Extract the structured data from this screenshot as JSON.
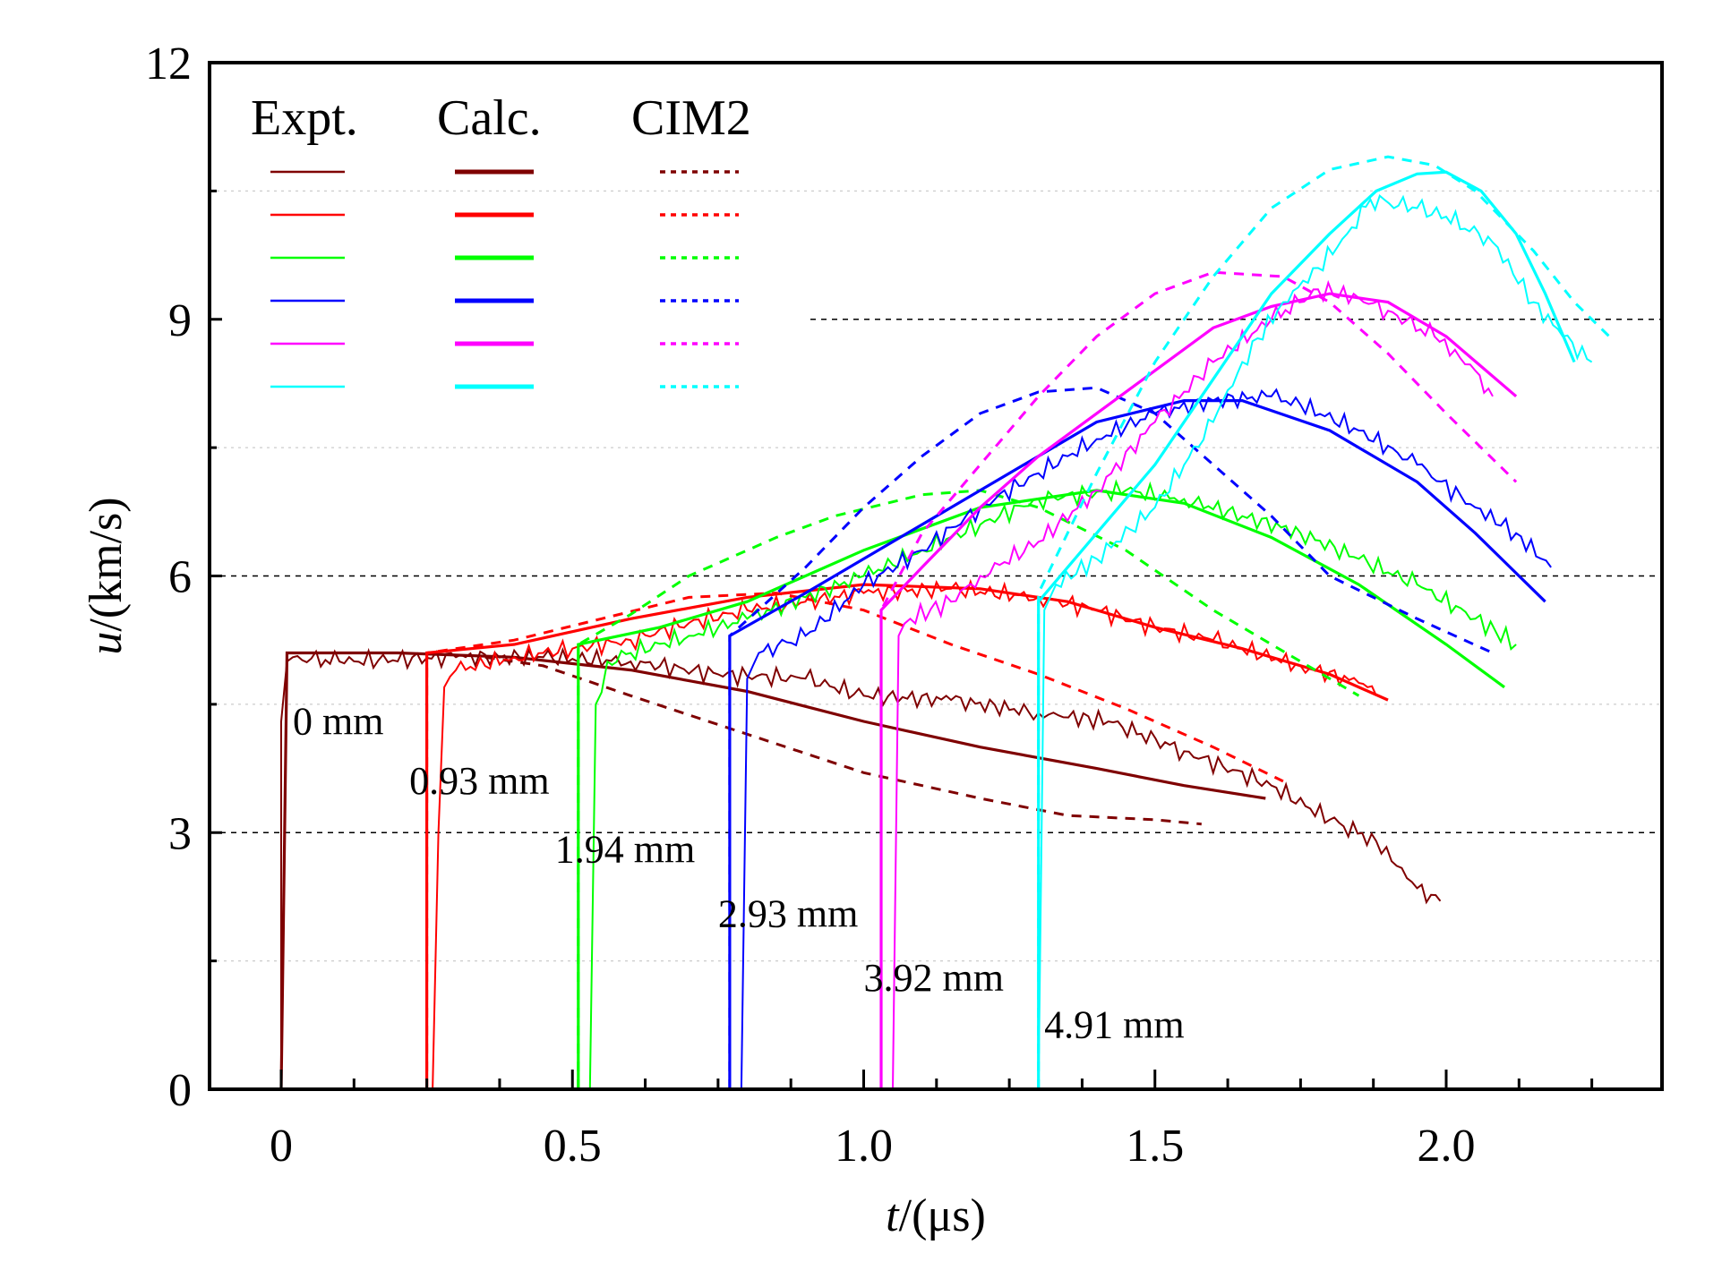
{
  "chart_data": {
    "type": "line",
    "title": "",
    "xlabel": "t/(μs)",
    "xlabel_italic": "t",
    "xlabel_rest": "/(μs)",
    "ylabel": "u/(km/s)",
    "ylabel_italic": "u",
    "ylabel_rest": "/(km/s)",
    "xlim": [
      -0.12,
      2.4
    ],
    "ylim": [
      0,
      12
    ],
    "xticks": [
      0,
      0.5,
      1.0,
      1.5,
      2.0
    ],
    "xtick_labels": [
      "0",
      "0.5",
      "1.0",
      "1.5",
      "2.0"
    ],
    "yticks": [
      0,
      3,
      6,
      9,
      12
    ],
    "ytick_labels": [
      "0",
      "3",
      "6",
      "9",
      "12"
    ],
    "grid": {
      "major_y": [
        3,
        6,
        9
      ],
      "minor_y": [
        1.5,
        4.5,
        7.5,
        10.5
      ]
    },
    "legend": {
      "placement": "top-left",
      "headers": [
        "Expt.",
        "Calc.",
        "CIM2"
      ]
    },
    "series": [
      {
        "name": "0 mm",
        "color": "#7f0000",
        "annotation": "0 mm",
        "annotation_at": [
          0.02,
          4.15
        ],
        "expt": {
          "t": [
            0.0,
            0.0,
            0.01,
            0.02,
            0.1,
            0.3,
            0.45,
            0.6,
            0.75,
            0.9,
            1.0,
            1.15,
            1.3,
            1.42,
            1.55,
            1.7,
            1.8,
            1.88,
            1.95,
            1.99
          ],
          "u": [
            0,
            4.3,
            5.0,
            5.05,
            5.0,
            5.05,
            5.05,
            5.0,
            4.85,
            4.8,
            4.6,
            4.55,
            4.4,
            4.3,
            3.95,
            3.55,
            3.15,
            2.9,
            2.35,
            2.2
          ]
        },
        "calc": {
          "t": [
            0.0,
            0.01,
            0.2,
            0.4,
            0.6,
            0.8,
            1.0,
            1.2,
            1.4,
            1.55,
            1.69
          ],
          "u": [
            0,
            5.1,
            5.1,
            5.05,
            4.9,
            4.65,
            4.3,
            4.0,
            3.75,
            3.55,
            3.4
          ]
        },
        "cim2": {
          "t": [
            0.35,
            0.45,
            0.6,
            0.8,
            1.0,
            1.2,
            1.35,
            1.5,
            1.58
          ],
          "u": [
            5.05,
            4.95,
            4.6,
            4.15,
            3.7,
            3.4,
            3.2,
            3.15,
            3.1
          ]
        }
      },
      {
        "name": "0.93 mm",
        "color": "#ff0000",
        "annotation": "0.93 mm",
        "annotation_at": [
          0.22,
          3.45
        ],
        "expt": {
          "t": [
            0.26,
            0.27,
            0.28,
            0.3,
            0.4,
            0.5,
            0.6,
            0.7,
            0.8,
            0.9,
            1.0,
            1.15,
            1.3,
            1.4,
            1.5,
            1.6,
            1.75,
            1.85,
            1.88
          ],
          "u": [
            0,
            3.0,
            4.7,
            4.9,
            5.05,
            5.15,
            5.25,
            5.45,
            5.6,
            5.7,
            5.8,
            5.85,
            5.75,
            5.6,
            5.4,
            5.25,
            4.95,
            4.75,
            4.6
          ]
        },
        "calc": {
          "t": [
            0.25,
            0.25,
            0.4,
            0.6,
            0.8,
            1.0,
            1.2,
            1.35,
            1.5,
            1.65,
            1.8,
            1.9
          ],
          "u": [
            0,
            5.1,
            5.2,
            5.5,
            5.75,
            5.9,
            5.85,
            5.7,
            5.4,
            5.15,
            4.85,
            4.55
          ]
        },
        "cim2": {
          "t": [
            0.25,
            0.25,
            0.4,
            0.55,
            0.7,
            0.85,
            1.0,
            1.15,
            1.3,
            1.45,
            1.6,
            1.72
          ],
          "u": [
            0,
            5.1,
            5.25,
            5.5,
            5.75,
            5.8,
            5.6,
            5.2,
            4.85,
            4.45,
            4.0,
            3.6
          ]
        }
      },
      {
        "name": "1.94 mm",
        "color": "#00ff00",
        "annotation": "1.94 mm",
        "annotation_at": [
          0.47,
          2.65
        ],
        "expt": {
          "t": [
            0.53,
            0.54,
            0.56,
            0.6,
            0.7,
            0.8,
            0.9,
            1.0,
            1.1,
            1.2,
            1.3,
            1.45,
            1.55,
            1.65,
            1.75,
            1.85,
            1.95,
            2.05,
            2.12
          ],
          "u": [
            0,
            4.5,
            5.0,
            5.1,
            5.3,
            5.5,
            5.75,
            6.0,
            6.3,
            6.6,
            6.9,
            7.0,
            6.9,
            6.7,
            6.5,
            6.2,
            5.9,
            5.5,
            5.2
          ]
        },
        "calc": {
          "t": [
            0.51,
            0.51,
            0.65,
            0.8,
            1.0,
            1.2,
            1.4,
            1.55,
            1.7,
            1.85,
            2.0,
            2.1
          ],
          "u": [
            0,
            5.2,
            5.4,
            5.7,
            6.3,
            6.8,
            7.0,
            6.85,
            6.45,
            5.9,
            5.2,
            4.7
          ]
        },
        "cim2": {
          "t": [
            0.51,
            0.51,
            0.6,
            0.7,
            0.85,
            0.95,
            1.1,
            1.2,
            1.3,
            1.45,
            1.6,
            1.75,
            1.85
          ],
          "u": [
            0,
            5.2,
            5.55,
            6.0,
            6.45,
            6.7,
            6.95,
            7.0,
            6.8,
            6.3,
            5.6,
            5.0,
            4.6
          ]
        }
      },
      {
        "name": "2.93 mm",
        "color": "#0000ff",
        "annotation": "2.93 mm",
        "annotation_at": [
          0.75,
          1.9
        ],
        "expt": {
          "t": [
            0.79,
            0.8,
            0.82,
            0.9,
            1.0,
            1.1,
            1.2,
            1.3,
            1.4,
            1.5,
            1.6,
            1.7,
            1.75,
            1.85,
            1.95,
            2.05,
            2.12,
            2.18
          ],
          "u": [
            0,
            4.8,
            5.1,
            5.3,
            5.9,
            6.3,
            6.8,
            7.2,
            7.6,
            7.9,
            8.05,
            8.1,
            8.0,
            7.7,
            7.3,
            6.8,
            6.5,
            6.1
          ]
        },
        "calc": {
          "t": [
            0.77,
            0.77,
            0.9,
            1.0,
            1.2,
            1.4,
            1.55,
            1.65,
            1.8,
            1.95,
            2.05,
            2.17
          ],
          "u": [
            0,
            5.3,
            5.8,
            6.2,
            7.0,
            7.8,
            8.05,
            8.05,
            7.7,
            7.1,
            6.5,
            5.7
          ]
        },
        "cim2": {
          "t": [
            0.77,
            0.77,
            0.9,
            1.0,
            1.1,
            1.2,
            1.3,
            1.4,
            1.5,
            1.6,
            1.7,
            1.8,
            1.95,
            2.08
          ],
          "u": [
            0,
            5.3,
            6.1,
            6.8,
            7.4,
            7.9,
            8.15,
            8.2,
            7.9,
            7.3,
            6.7,
            6.0,
            5.5,
            5.1
          ]
        }
      },
      {
        "name": "3.92 mm",
        "color": "#ff00ff",
        "annotation": "3.92 mm",
        "annotation_at": [
          1.0,
          1.15
        ],
        "expt": {
          "t": [
            1.05,
            1.06,
            1.08,
            1.15,
            1.2,
            1.3,
            1.4,
            1.5,
            1.6,
            1.7,
            1.78,
            1.85,
            1.9,
            1.98,
            2.05,
            2.08
          ],
          "u": [
            0,
            5.3,
            5.5,
            5.7,
            6.0,
            6.4,
            7.0,
            7.8,
            8.5,
            9.0,
            9.35,
            9.25,
            9.1,
            8.8,
            8.4,
            8.1
          ]
        },
        "calc": {
          "t": [
            1.03,
            1.03,
            1.1,
            1.2,
            1.3,
            1.4,
            1.5,
            1.6,
            1.7,
            1.8,
            1.9,
            2.0,
            2.12
          ],
          "u": [
            0,
            5.6,
            6.1,
            6.8,
            7.4,
            7.9,
            8.4,
            8.9,
            9.15,
            9.3,
            9.2,
            8.8,
            8.1
          ]
        },
        "cim2": {
          "t": [
            1.03,
            1.03,
            1.1,
            1.2,
            1.3,
            1.4,
            1.5,
            1.6,
            1.72,
            1.8,
            1.9,
            2.0,
            2.12
          ],
          "u": [
            0,
            5.6,
            6.5,
            7.3,
            8.1,
            8.8,
            9.3,
            9.55,
            9.5,
            9.2,
            8.6,
            7.9,
            7.1
          ]
        }
      },
      {
        "name": "4.91 mm",
        "color": "#00ffff",
        "annotation": "4.91 mm",
        "annotation_at": [
          1.31,
          0.6
        ],
        "expt": {
          "t": [
            1.3,
            1.31,
            1.33,
            1.4,
            1.5,
            1.6,
            1.65,
            1.72,
            1.78,
            1.83,
            1.87,
            1.95,
            2.0,
            2.08,
            2.15,
            2.2,
            2.25
          ],
          "u": [
            0,
            5.6,
            5.9,
            6.2,
            6.8,
            7.8,
            8.5,
            9.2,
            9.6,
            10.0,
            10.4,
            10.3,
            10.2,
            9.9,
            9.2,
            8.8,
            8.5
          ]
        },
        "calc": {
          "t": [
            1.3,
            1.3,
            1.4,
            1.5,
            1.6,
            1.7,
            1.8,
            1.88,
            1.95,
            2.0,
            2.06,
            2.12,
            2.17,
            2.22
          ],
          "u": [
            0,
            5.7,
            6.5,
            7.3,
            8.3,
            9.3,
            10.0,
            10.5,
            10.7,
            10.72,
            10.5,
            10.0,
            9.3,
            8.5
          ]
        },
        "cim2": {
          "t": [
            1.3,
            1.3,
            1.4,
            1.5,
            1.6,
            1.7,
            1.8,
            1.9,
            1.98,
            2.05,
            2.15,
            2.22,
            2.28
          ],
          "u": [
            0,
            5.8,
            7.2,
            8.5,
            9.5,
            10.3,
            10.75,
            10.9,
            10.8,
            10.5,
            9.8,
            9.2,
            8.8
          ]
        }
      }
    ]
  }
}
